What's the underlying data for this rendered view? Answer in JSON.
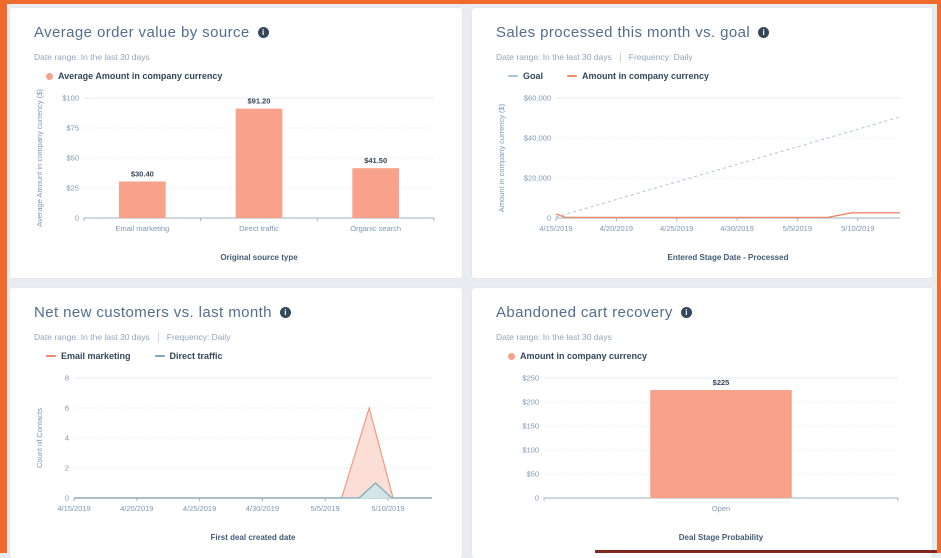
{
  "frame": {
    "border_color": "#ef6a2d",
    "background": "#e9edf2",
    "bottom_strip_color": "#7e2a20"
  },
  "icons": {
    "info": "i"
  },
  "colors": {
    "card_bg": "#ffffff",
    "title": "#516f90",
    "meta_text": "#8fa7bd",
    "legend_text": "#33475b",
    "tick_text": "#7c98b6",
    "axis_title": "#425b76",
    "value_label": "#33475b",
    "grid_dotted": "#dfe6ed",
    "grid_top_solid": "#e4eaf0",
    "axis": "#9cb3c5",
    "bar_orange": "#f9a28b",
    "line_orange": "#ea8a6a",
    "goal_blue": "#aac4d9",
    "area_orange_stroke": "#f09a7f",
    "area_orange_fill": "#fbded5",
    "area_teal_stroke": "#78aab9",
    "area_teal_fill": "#d5e4e7"
  },
  "chart_data": [
    {
      "type": "bar",
      "title": "Average order value by source",
      "date_range_label": "Date range: In the last 30 days",
      "frequency_label": null,
      "legend": [
        {
          "label": "Average Amount in company currency",
          "marker": "dot",
          "color": "#f9a28b"
        }
      ],
      "categories": [
        "Email marketing",
        "Direct traffic",
        "Organic search"
      ],
      "values": [
        30.4,
        91.2,
        41.5
      ],
      "value_labels": [
        "$30.40",
        "$91.20",
        "$41.50"
      ],
      "ylim": [
        0,
        100
      ],
      "yticks": [
        {
          "value": 0,
          "label": "0"
        },
        {
          "value": 25,
          "label": "$25"
        },
        {
          "value": 50,
          "label": "$50"
        },
        {
          "value": 75,
          "label": "$75"
        },
        {
          "value": 100,
          "label": "$100"
        }
      ],
      "ylabel": "Average Amount in company currency ($)",
      "xlabel": "Original source type",
      "bar_color": "#f9a28b",
      "grid": true,
      "legend_position": "top-left"
    },
    {
      "type": "line",
      "title": "Sales processed this month vs. goal",
      "date_range_label": "Date range: In the last 30 days",
      "frequency_label": "Frequency: Daily",
      "legend": [
        {
          "label": "Goal",
          "marker": "dash",
          "color": "#aac4d9"
        },
        {
          "label": "Amount in company currency",
          "marker": "dash",
          "color": "#ea8a6a"
        }
      ],
      "xlim": [
        0,
        28.5
      ],
      "xticks": [
        {
          "value": 0,
          "label": "4/15/2019"
        },
        {
          "value": 5,
          "label": "4/20/2019"
        },
        {
          "value": 10,
          "label": "4/25/2019"
        },
        {
          "value": 15,
          "label": "4/30/2019"
        },
        {
          "value": 20,
          "label": "5/5/2019"
        },
        {
          "value": 25,
          "label": "5/10/2019"
        }
      ],
      "ylim": [
        0,
        60000
      ],
      "yticks": [
        {
          "value": 0,
          "label": "0"
        },
        {
          "value": 20000,
          "label": "$20,000"
        },
        {
          "value": 40000,
          "label": "$40,000"
        },
        {
          "value": 60000,
          "label": "$60,000"
        }
      ],
      "ylabel": "Amount in company currency ($)",
      "xlabel": "Entered Stage Date - Processed",
      "series": [
        {
          "name": "Goal",
          "color": "#aac4d9",
          "dash": "3,3",
          "width": 1,
          "points": [
            [
              0,
              500
            ],
            [
              28.5,
              50500
            ]
          ]
        },
        {
          "name": "Amount in company currency",
          "color": "#ea8a6a",
          "dash": null,
          "width": 1.4,
          "points": [
            [
              0,
              2000
            ],
            [
              0.8,
              300
            ],
            [
              22.5,
              300
            ],
            [
              24.5,
              2600
            ],
            [
              28.5,
              2600
            ]
          ]
        }
      ],
      "grid": true,
      "legend_position": "top-left"
    },
    {
      "type": "area",
      "title": "Net new customers vs. last month",
      "date_range_label": "Date range: In the last 30 days",
      "frequency_label": "Frequency: Daily",
      "legend": [
        {
          "label": "Email marketing",
          "marker": "dash",
          "color": "#ea8a6a"
        },
        {
          "label": "Direct traffic",
          "marker": "dash",
          "color": "#78aab9"
        }
      ],
      "xlim": [
        0,
        28.5
      ],
      "xticks": [
        {
          "value": 0,
          "label": "4/15/2019"
        },
        {
          "value": 5,
          "label": "4/20/2019"
        },
        {
          "value": 10,
          "label": "4/25/2019"
        },
        {
          "value": 15,
          "label": "4/30/2019"
        },
        {
          "value": 20,
          "label": "5/5/2019"
        },
        {
          "value": 25,
          "label": "5/10/2019"
        }
      ],
      "ylim": [
        0,
        8
      ],
      "yticks": [
        {
          "value": 0,
          "label": "0"
        },
        {
          "value": 2,
          "label": "2"
        },
        {
          "value": 4,
          "label": "4"
        },
        {
          "value": 6,
          "label": "6"
        },
        {
          "value": 8,
          "label": "8"
        }
      ],
      "ylabel": "Count of Contacts",
      "xlabel": "First deal created date",
      "series": [
        {
          "name": "Email marketing",
          "color": "#f09a7f",
          "fill": "#fbded5",
          "width": 1.2,
          "points": [
            [
              0,
              0
            ],
            [
              21.3,
              0
            ],
            [
              23.5,
              6
            ],
            [
              25.4,
              0
            ],
            [
              28.5,
              0
            ]
          ]
        },
        {
          "name": "Direct traffic",
          "color": "#78aab9",
          "fill": "#d5e4e7",
          "width": 1.2,
          "points": [
            [
              0,
              0
            ],
            [
              22.7,
              0
            ],
            [
              24,
              1
            ],
            [
              25.3,
              0
            ],
            [
              28.5,
              0
            ]
          ]
        }
      ],
      "grid": true,
      "legend_position": "top-left"
    },
    {
      "type": "bar",
      "title": "Abandoned cart recovery",
      "date_range_label": "Date range: In the last 30 days",
      "frequency_label": null,
      "legend": [
        {
          "label": "Amount in company currency",
          "marker": "dot",
          "color": "#f9a28b"
        }
      ],
      "categories": [
        "Open"
      ],
      "values": [
        225
      ],
      "value_labels": [
        "$225"
      ],
      "ylim": [
        0,
        250
      ],
      "yticks": [
        {
          "value": 0,
          "label": "0"
        },
        {
          "value": 50,
          "label": "$50"
        },
        {
          "value": 100,
          "label": "$100"
        },
        {
          "value": 150,
          "label": "$150"
        },
        {
          "value": 200,
          "label": "$200"
        },
        {
          "value": 250,
          "label": "$250"
        }
      ],
      "ylabel": null,
      "xlabel": "Deal Stage Probability",
      "bar_color": "#f9a28b",
      "grid": true,
      "legend_position": "top-left"
    }
  ]
}
